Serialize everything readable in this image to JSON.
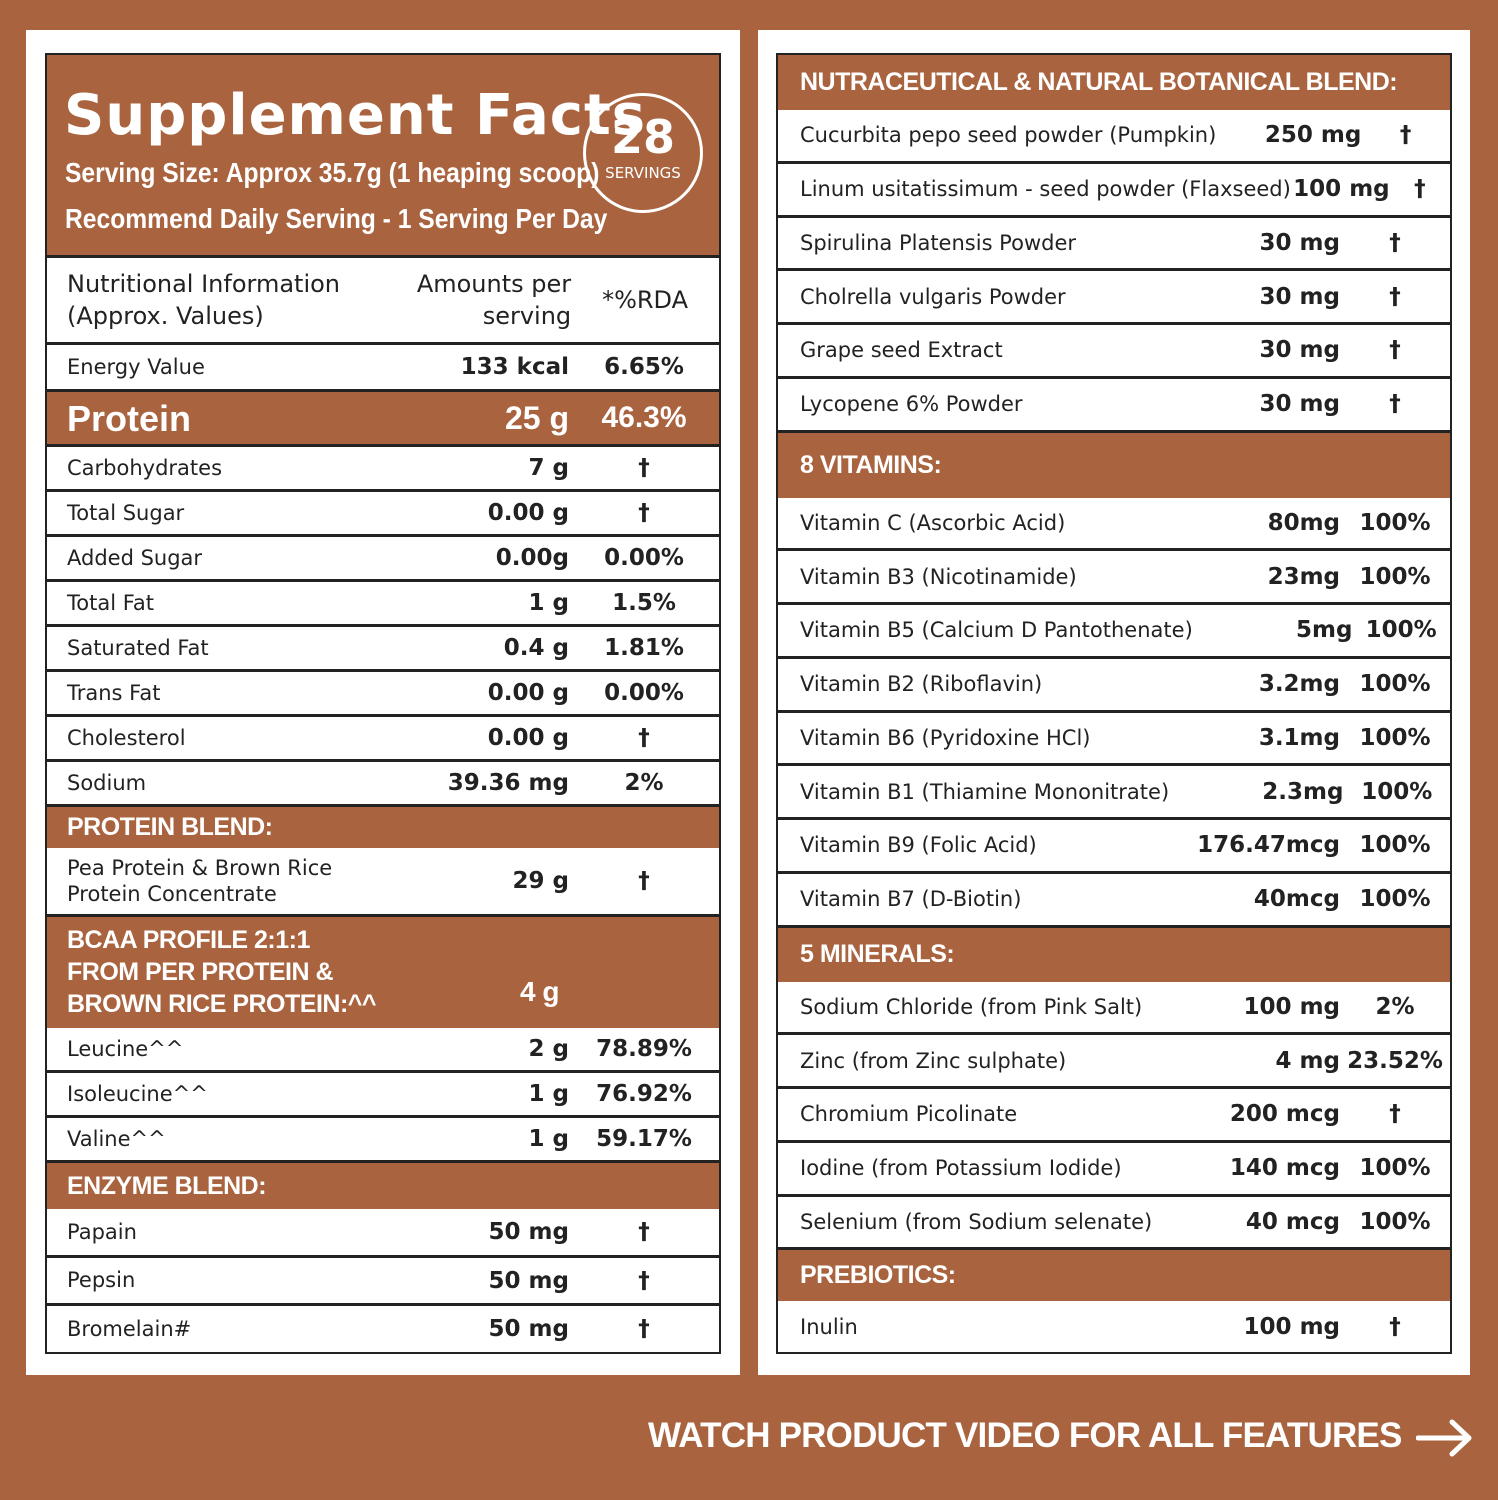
{
  "header": {
    "title": "Supplement Facts",
    "serving_size": "Serving Size: Approx 35.7g (1 heaping scoop)",
    "recommended": "Recommend Daily Serving - 1 Serving Per Day",
    "badge_number": "28",
    "badge_label": "SERVINGS"
  },
  "left": {
    "columns": [
      "Nutritional Information (Approx. Values)",
      "Amounts per serving",
      "*%RDA"
    ],
    "energy": [
      "Energy Value",
      "133 kcal",
      "6.65%"
    ],
    "protein": [
      "Protein",
      "25 g",
      "46.3%"
    ],
    "nutrients": [
      [
        "Carbohydrates",
        "7 g",
        "†"
      ],
      [
        "Total Sugar",
        "0.00 g",
        "†"
      ],
      [
        "Added Sugar",
        "0.00g",
        "0.00%"
      ],
      [
        "Total Fat",
        "1 g",
        "1.5%"
      ],
      [
        "Saturated Fat",
        "0.4 g",
        "1.81%"
      ],
      [
        "Trans Fat",
        "0.00 g",
        "0.00%"
      ],
      [
        "Cholesterol",
        "0.00 g",
        "†"
      ],
      [
        "Sodium",
        "39.36 mg",
        "2%"
      ]
    ],
    "protein_blend": {
      "title": "PROTEIN BLEND:",
      "rows": [
        [
          "Pea Protein & Brown Rice Protein Concentrate",
          "29 g",
          "†"
        ]
      ]
    },
    "bcaa": {
      "title": "BCAA PROFILE 2:1:1 FROM PER PROTEIN & BROWN RICE PROTEIN:^^",
      "amount": "4 g",
      "rows": [
        [
          "Leucine^^",
          "2 g",
          "78.89%"
        ],
        [
          "Isoleucine^^",
          "1 g",
          "76.92%"
        ],
        [
          "Valine^^",
          "1 g",
          "59.17%"
        ]
      ]
    },
    "enzyme": {
      "title": "ENZYME BLEND:",
      "rows": [
        [
          "Papain",
          "50 mg",
          "†"
        ],
        [
          "Pepsin",
          "50 mg",
          "†"
        ],
        [
          "Bromelain#",
          "50 mg",
          "†"
        ]
      ]
    }
  },
  "right": {
    "sections": [
      {
        "title": "NUTRACEUTICAL & NATURAL BOTANICAL BLEND:",
        "rows": [
          [
            "Cucurbita pepo seed powder (Pumpkin)",
            "250 mg",
            "†"
          ],
          [
            "Linum usitatissimum - seed powder (Flaxseed)",
            "100 mg",
            "†"
          ],
          [
            "Spirulina Platensis Powder",
            "30 mg",
            "†"
          ],
          [
            "Cholrella vulgaris Powder",
            "30 mg",
            "†"
          ],
          [
            "Grape seed Extract",
            "30 mg",
            "†"
          ],
          [
            "Lycopene 6% Powder",
            "30 mg",
            "†"
          ]
        ]
      },
      {
        "title": "8 VITAMINS:",
        "rows": [
          [
            "Vitamin C (Ascorbic Acid)",
            "80mg",
            "100%"
          ],
          [
            "Vitamin B3 (Nicotinamide)",
            "23mg",
            "100%"
          ],
          [
            "Vitamin B5 (Calcium D Pantothenate)",
            "5mg",
            "100%"
          ],
          [
            "Vitamin B2 (Riboflavin)",
            "3.2mg",
            "100%"
          ],
          [
            "Vitamin B6 (Pyridoxine HCl)",
            "3.1mg",
            "100%"
          ],
          [
            "Vitamin B1 (Thiamine Mononitrate)",
            "2.3mg",
            "100%"
          ],
          [
            "Vitamin B9 (Folic Acid)",
            "176.47mcg",
            "100%"
          ],
          [
            "Vitamin B7 (D-Biotin)",
            "40mcg",
            "100%"
          ]
        ]
      },
      {
        "title": "5 MINERALS:",
        "rows": [
          [
            "Sodium Chloride (from Pink Salt)",
            "100 mg",
            "2%"
          ],
          [
            "Zinc (from Zinc sulphate)",
            "4 mg",
            "23.52%"
          ],
          [
            "Chromium Picolinate",
            "200 mcg",
            "†"
          ],
          [
            "Iodine (from Potassium Iodide)",
            "140 mcg",
            "100%"
          ],
          [
            "Selenium (from Sodium selenate)",
            "40 mcg",
            "100%"
          ]
        ]
      },
      {
        "title": "PREBIOTICS:",
        "rows": [
          [
            "Inulin",
            "100 mg",
            "†"
          ]
        ]
      }
    ]
  },
  "footer": {
    "cta": "WATCH PRODUCT VIDEO FOR ALL FEATURES"
  }
}
